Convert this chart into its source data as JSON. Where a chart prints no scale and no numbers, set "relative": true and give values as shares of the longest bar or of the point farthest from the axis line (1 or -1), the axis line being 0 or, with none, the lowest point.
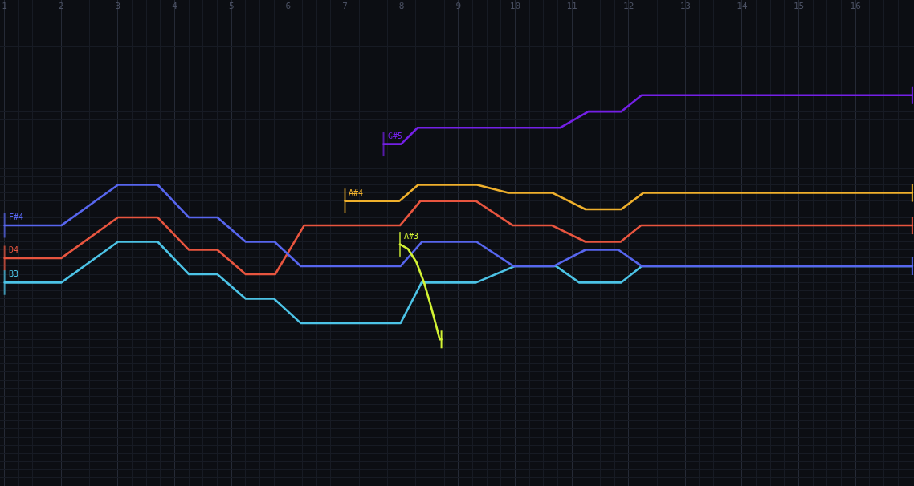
{
  "chart_data": {
    "type": "line",
    "relative": true,
    "xlim": [
      0.92,
      17.03
    ],
    "xticks": [
      1,
      2,
      3,
      4,
      5,
      6,
      7,
      8,
      9,
      10,
      11,
      12,
      13,
      14,
      15,
      16
    ],
    "grid": true,
    "series": [
      {
        "name": "B3",
        "color": "#4cc3e6",
        "x": [
          1,
          2.0,
          3.0,
          3.7,
          4.25,
          4.75,
          5.25,
          5.75,
          6.22,
          7.98,
          8.35,
          9.31,
          9.99,
          10.72,
          11.13,
          11.87,
          12.23,
          17
        ],
        "values": [
          0.233,
          0.233,
          0.4,
          0.4,
          0.267,
          0.267,
          0.167,
          0.167,
          0.067,
          0.067,
          0.233,
          0.233,
          0.3,
          0.3,
          0.233,
          0.233,
          0.3,
          0.3
        ]
      },
      {
        "name": "D4",
        "color": "#e8553f",
        "x": [
          1,
          2.0,
          3.0,
          3.7,
          4.25,
          4.75,
          5.25,
          5.77,
          6.28,
          7.97,
          8.33,
          9.31,
          9.96,
          10.65,
          11.24,
          11.86,
          12.22,
          17
        ],
        "values": [
          0.333,
          0.333,
          0.5,
          0.5,
          0.367,
          0.367,
          0.267,
          0.267,
          0.467,
          0.467,
          0.567,
          0.567,
          0.467,
          0.467,
          0.4,
          0.4,
          0.467,
          0.467
        ]
      },
      {
        "name": "F#4",
        "color": "#5766ee",
        "x": [
          1,
          2.0,
          3.0,
          3.7,
          4.25,
          4.75,
          5.25,
          5.76,
          6.22,
          7.98,
          8.36,
          9.32,
          9.97,
          10.68,
          11.24,
          11.82,
          12.23,
          17
        ],
        "values": [
          0.467,
          0.467,
          0.633,
          0.633,
          0.5,
          0.5,
          0.4,
          0.4,
          0.3,
          0.3,
          0.4,
          0.4,
          0.3,
          0.3,
          0.367,
          0.367,
          0.3,
          0.3
        ]
      },
      {
        "name": "A#4",
        "color": "#efb02c",
        "x": [
          7.0,
          7.96,
          8.29,
          9.33,
          9.88,
          10.66,
          11.24,
          11.87,
          12.26,
          17
        ],
        "values": [
          0.567,
          0.567,
          0.633,
          0.633,
          0.6,
          0.6,
          0.533,
          0.533,
          0.6,
          0.6
        ]
      },
      {
        "name": "G#5",
        "color": "#7420e6",
        "x": [
          7.68,
          7.99,
          8.28,
          10.79,
          11.29,
          11.87,
          12.23,
          17
        ],
        "values": [
          0.8,
          0.8,
          0.867,
          0.867,
          0.933,
          0.933,
          1,
          1
        ]
      },
      {
        "name": "A#3",
        "color": "#d2f234",
        "x": [
          7.97,
          8.11,
          8.26,
          8.4,
          8.51,
          8.61,
          8.67,
          8.7
        ],
        "values": [
          0.39,
          0.371,
          0.316,
          0.229,
          0.141,
          0.054,
          0,
          0
        ]
      }
    ]
  }
}
